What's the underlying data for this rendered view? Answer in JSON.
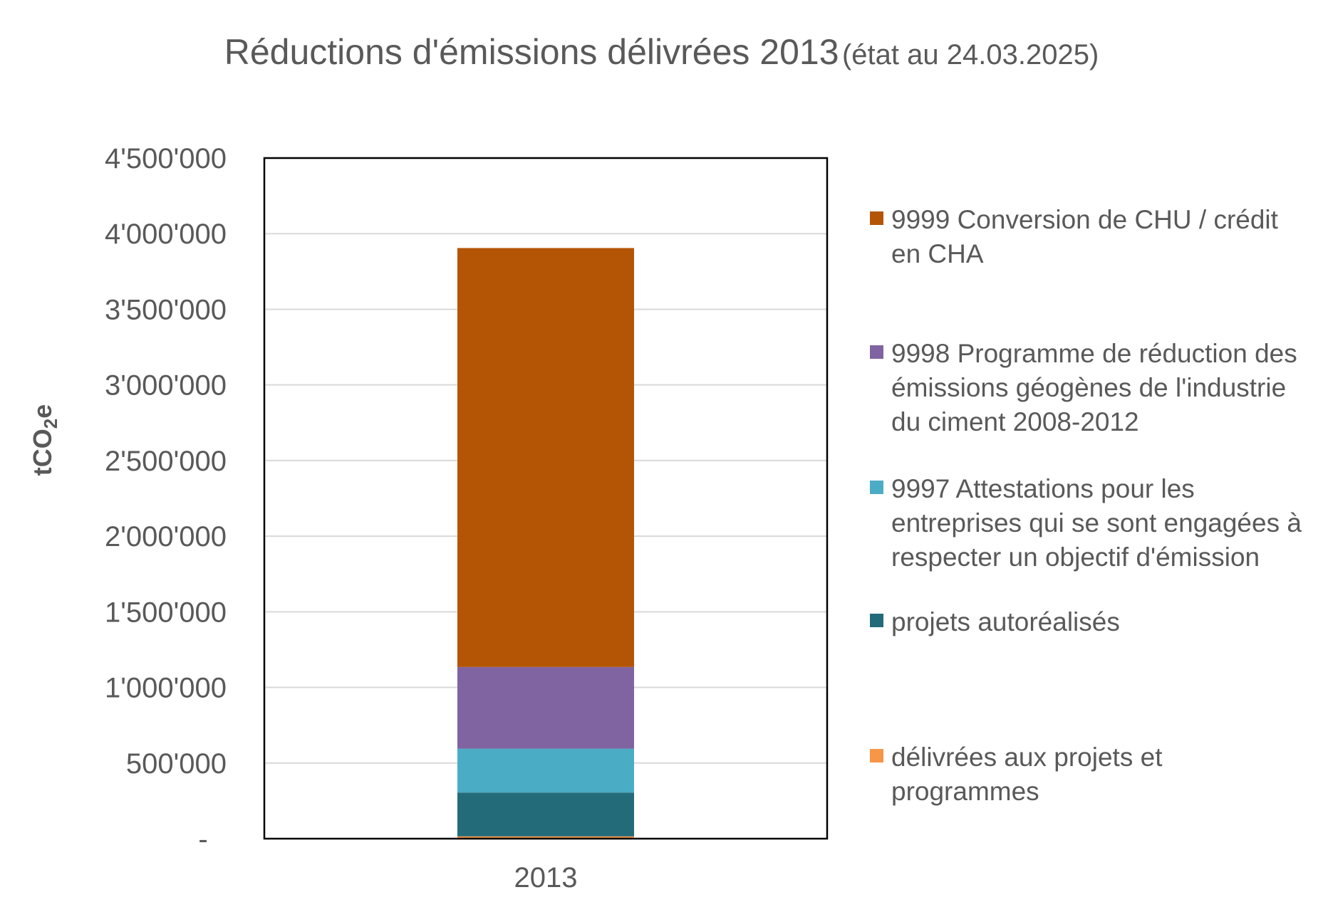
{
  "title": {
    "main": "Réductions d'émissions délivrées 2013",
    "sub": "(état au 24.03.2025)"
  },
  "chart_data": {
    "type": "bar",
    "stacked": true,
    "categories": [
      "2013"
    ],
    "ylabel": "tCO2e",
    "ylim": [
      0,
      4500000
    ],
    "yticks": [
      0,
      500000,
      1000000,
      1500000,
      2000000,
      2500000,
      3000000,
      3500000,
      4000000,
      4500000
    ],
    "ytick_labels": [
      "-",
      "500'000",
      "1'000'000",
      "1'500'000",
      "2'000'000",
      "2'500'000",
      "3'000'000",
      "3'500'000",
      "4'000'000",
      "4'500'000"
    ],
    "grid": true,
    "legend_position": "right",
    "series": [
      {
        "name": "délivrées aux projets et programmes",
        "color": "#F79646",
        "values": [
          15000
        ]
      },
      {
        "name": "projets autoréalisés",
        "color": "#246B7A",
        "values": [
          290000
        ]
      },
      {
        "name": "9997 Attestations pour les entreprises qui se sont engagées à respecter un objectif d'émission",
        "color": "#4BACC6",
        "values": [
          290000
        ]
      },
      {
        "name": "9998 Programme de réduction des émissions géogènes de l'industrie du ciment 2008-2012",
        "color": "#8064A2",
        "values": [
          540000
        ]
      },
      {
        "name": "9999 Conversion de CHU / crédit en CHA",
        "color": "#B45506",
        "values": [
          2770000
        ]
      }
    ]
  }
}
